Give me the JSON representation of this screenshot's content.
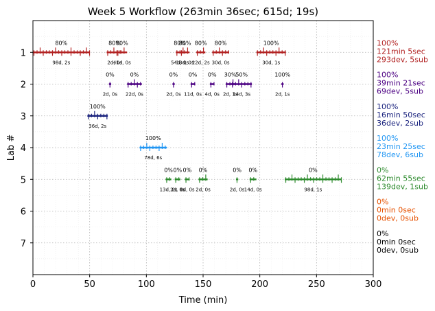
{
  "chart_data": {
    "type": "timeline",
    "title": "Week 5 Workflow (263min 36sec; 615d; 19s)",
    "xlabel": "Time (min)",
    "ylabel": "Lab #",
    "xlim": [
      0,
      300
    ],
    "ylim": [
      0,
      8
    ],
    "xticks": [
      "0",
      "50",
      "100",
      "150",
      "200",
      "250",
      "300"
    ],
    "yticks": [
      "1",
      "2",
      "3",
      "4",
      "5",
      "6",
      "7"
    ],
    "grid": true,
    "labs": [
      {
        "lab": 1,
        "color": "#b22222",
        "summary": [
          "100%",
          "121min 5sec",
          "293dev, 5sub"
        ],
        "sessions": [
          {
            "start": 0,
            "end": 50,
            "pct": "80%",
            "info": "98d, 2s"
          },
          {
            "start": 65,
            "end": 79,
            "pct": "80%",
            "info": "2d, 0s"
          },
          {
            "start": 74,
            "end": 83,
            "pct": "80%",
            "info": "41d, 0s"
          },
          {
            "start": 126,
            "end": 133,
            "pct": "80%",
            "info": "54d, 0s"
          },
          {
            "start": 130,
            "end": 138,
            "pct": "80%",
            "info": "18d, 0s"
          },
          {
            "start": 144,
            "end": 152,
            "pct": "80%",
            "info": "22d, 2s"
          },
          {
            "start": 158,
            "end": 173,
            "pct": "80%",
            "info": "30d, 0s"
          },
          {
            "start": 197,
            "end": 223,
            "pct": "100%",
            "info": "30d, 1s"
          }
        ]
      },
      {
        "lab": 2,
        "color": "#4b0082",
        "summary": [
          "100%",
          "39min 21sec",
          "69dev, 5sub"
        ],
        "sessions": [
          {
            "start": 67,
            "end": 69,
            "pct": "0%",
            "info": "2d, 0s"
          },
          {
            "start": 83,
            "end": 96,
            "pct": "0%",
            "info": "22d, 0s"
          },
          {
            "start": 123,
            "end": 125,
            "pct": "0%",
            "info": "2d, 0s"
          },
          {
            "start": 139,
            "end": 143,
            "pct": "0%",
            "info": "11d, 0s"
          },
          {
            "start": 156,
            "end": 160,
            "pct": "0%",
            "info": "4d, 0s"
          },
          {
            "start": 170,
            "end": 178,
            "pct": "30%",
            "info": "2d, 1s"
          },
          {
            "start": 175,
            "end": 193,
            "pct": "50%",
            "info": "14d, 3s"
          },
          {
            "start": 219,
            "end": 221,
            "pct": "100%",
            "info": "2d, 1s"
          }
        ]
      },
      {
        "lab": 3,
        "color": "#1a237e",
        "summary": [
          "100%",
          "16min 50sec",
          "36dev, 2sub"
        ],
        "sessions": [
          {
            "start": 48,
            "end": 66,
            "pct": "100%",
            "info": "36d, 2s"
          }
        ]
      },
      {
        "lab": 4,
        "color": "#2196f3",
        "summary": [
          "100%",
          "23min 25sec",
          "78dev, 6sub"
        ],
        "sessions": [
          {
            "start": 94,
            "end": 118,
            "pct": "100%",
            "info": "78d, 6s"
          }
        ]
      },
      {
        "lab": 5,
        "color": "#2e8b2e",
        "summary": [
          "0%",
          "62min 55sec",
          "139dev, 1sub"
        ],
        "sessions": [
          {
            "start": 117,
            "end": 122,
            "pct": "0%",
            "info": "13d, 0s"
          },
          {
            "start": 125,
            "end": 130,
            "pct": "0%",
            "info": "2d, 0s"
          },
          {
            "start": 134,
            "end": 138,
            "pct": "0%",
            "info": "8d, 0s"
          },
          {
            "start": 146,
            "end": 154,
            "pct": "0%",
            "info": "2d, 0s"
          },
          {
            "start": 179,
            "end": 181,
            "pct": "0%",
            "info": "2d, 0s"
          },
          {
            "start": 191,
            "end": 197,
            "pct": "0%",
            "info": "14d, 0s"
          },
          {
            "start": 222,
            "end": 272,
            "pct": "0%",
            "info": "98d, 1s"
          }
        ]
      },
      {
        "lab": 6,
        "color": "#e65100",
        "summary": [
          "0%",
          "0min 0sec",
          "0dev, 0sub"
        ],
        "sessions": []
      },
      {
        "lab": 7,
        "color": "#000000",
        "summary": [
          "0%",
          "0min 0sec",
          "0dev, 0sub"
        ],
        "sessions": []
      }
    ]
  }
}
